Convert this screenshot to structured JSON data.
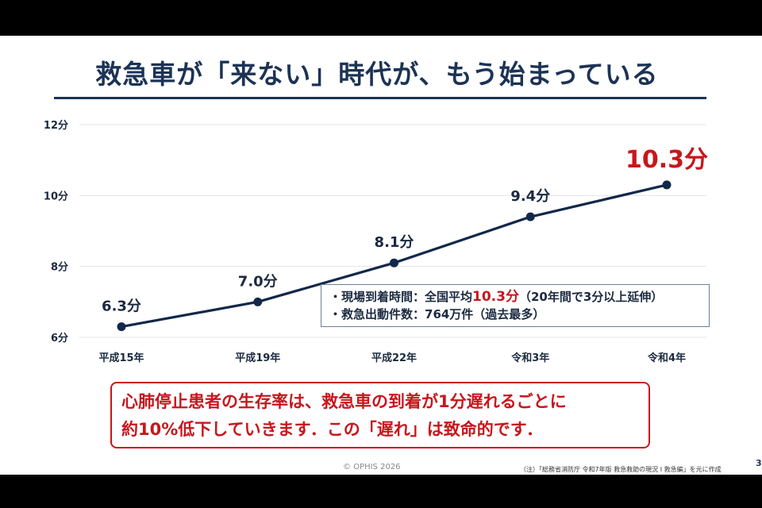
{
  "slide": {
    "title": "救急車が「来ない」時代が、もう始まっている",
    "info_line1_prefix": "・現場到着時間：全国平均",
    "info_line1_value": "10.3分",
    "info_line1_suffix": "（20年間で3分以上延伸）",
    "info_line2": "・救急出動件数：764万件（過去最多）",
    "warning_line1": "心肺停止患者の生存率は、救急車の到着が1分遅れるごとに",
    "warning_line2": "約10%低下していきます．この「遅れ」は致命的です．",
    "copyright": "© OPHIS 2026",
    "source_note": "（注）「総務省消防庁 令和7年版 救急救助の現況 Ⅰ 救急編」を元に作成",
    "page_number": "3"
  },
  "colors": {
    "title": "#1c3355",
    "line": "#12284a",
    "highlight": "#c8161d",
    "grid": "#e3e6ea",
    "text": "#1b2a40"
  },
  "chart_data": {
    "type": "line",
    "categories": [
      "平成15年",
      "平成19年",
      "平成22年",
      "令和3年",
      "令和4年"
    ],
    "values": [
      6.3,
      7.0,
      8.1,
      9.4,
      10.3
    ],
    "data_labels": [
      "6.3分",
      "7.0分",
      "8.1分",
      "9.4分",
      "10.3分"
    ],
    "highlight_index": 4,
    "ylim": [
      6,
      12
    ],
    "yticks": [
      6,
      8,
      10,
      12
    ],
    "ytick_labels": [
      "6分",
      "8分",
      "10分",
      "12分"
    ],
    "grid": true
  }
}
